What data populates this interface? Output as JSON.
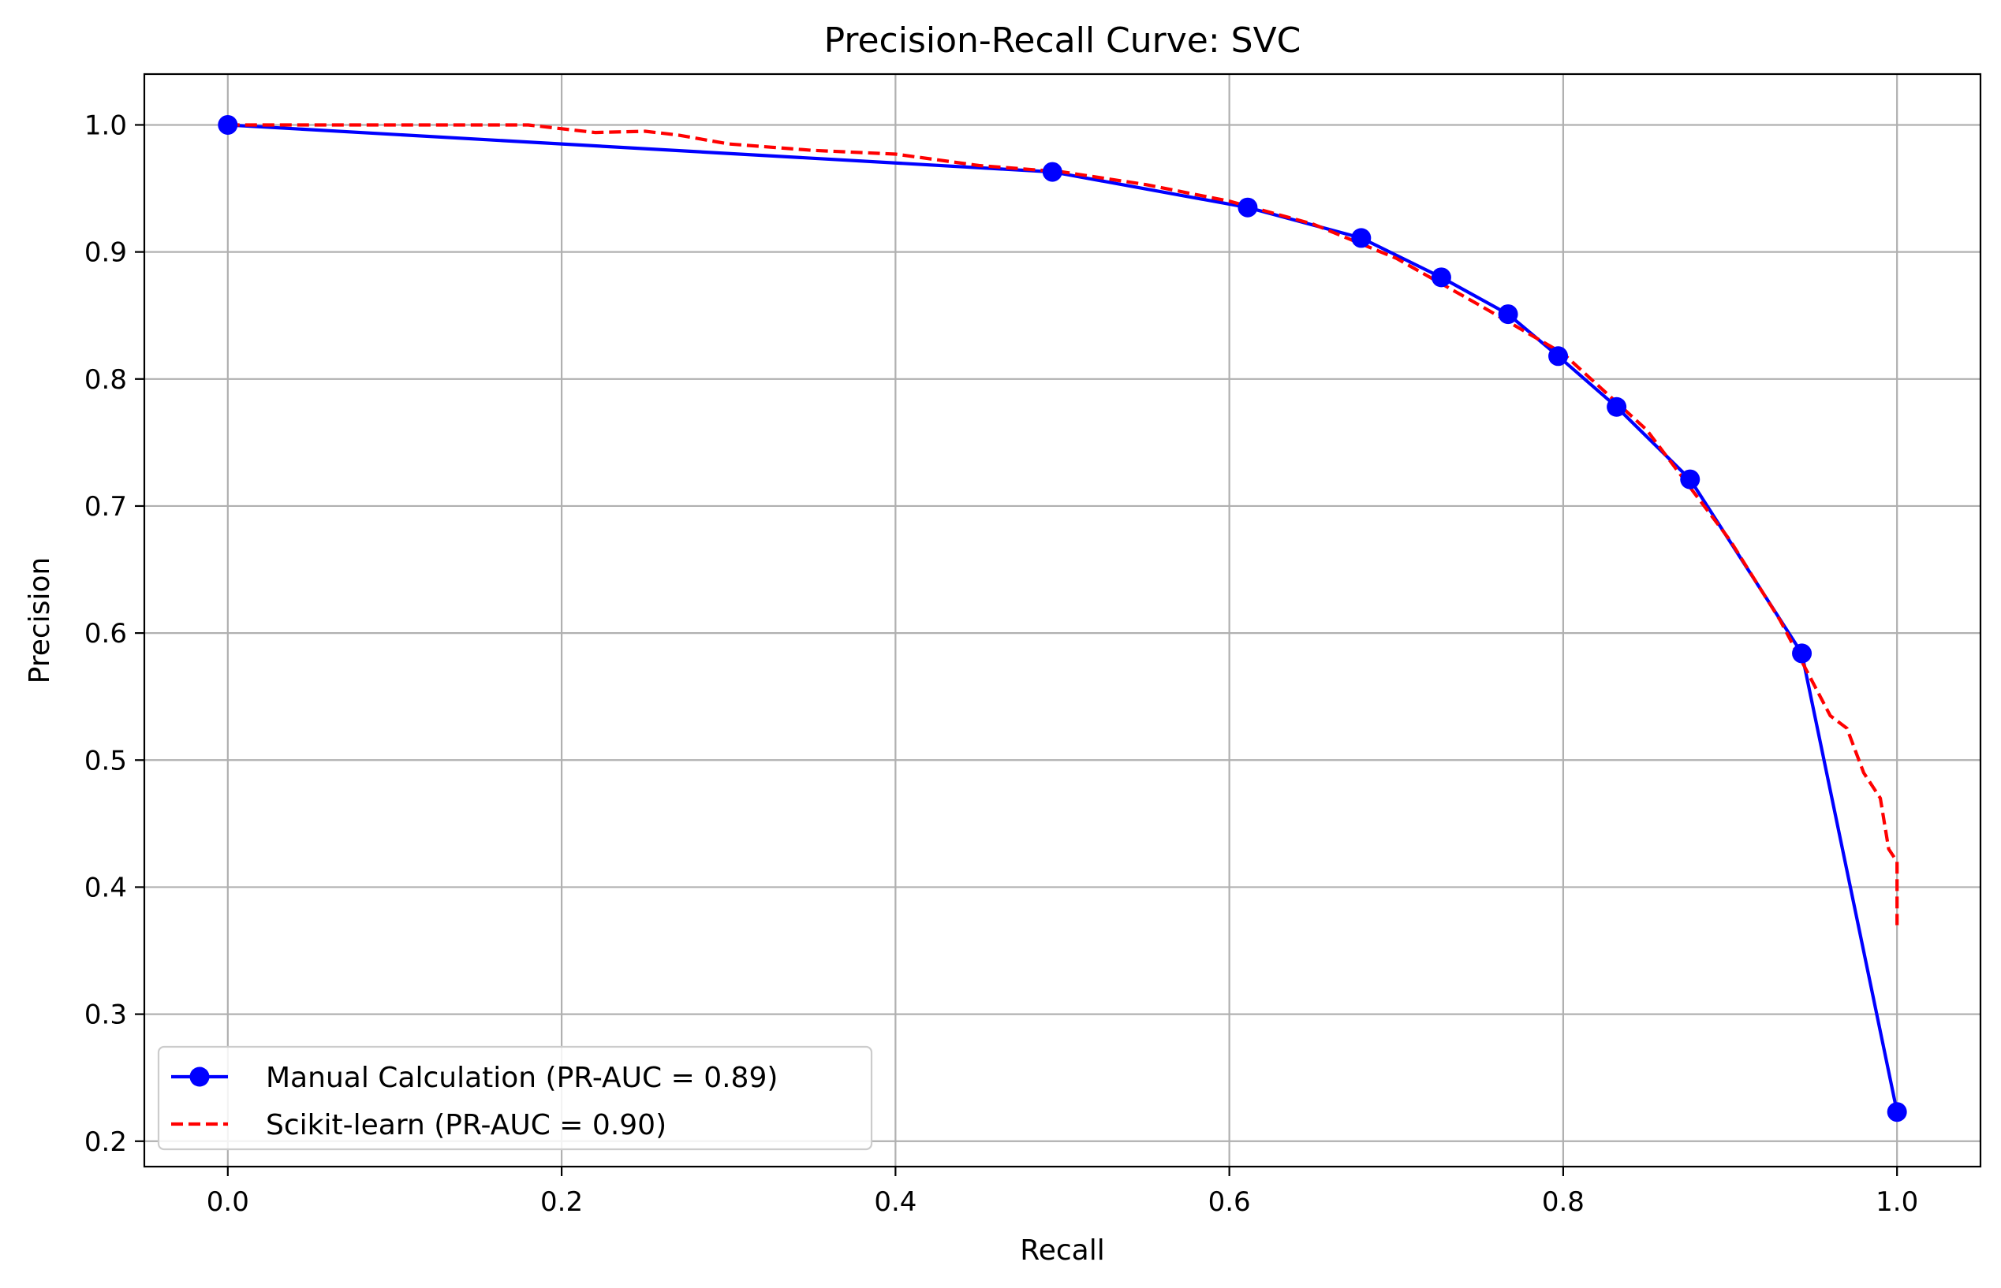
{
  "chart_data": {
    "type": "line",
    "title": "Precision-Recall Curve: SVC",
    "xlabel": "Recall",
    "ylabel": "Precision",
    "xlim": [
      -0.05,
      1.05
    ],
    "ylim": [
      0.18,
      1.04
    ],
    "xticks": [
      0.0,
      0.2,
      0.4,
      0.6,
      0.8,
      1.0
    ],
    "xtick_labels": [
      "0.0",
      "0.2",
      "0.4",
      "0.6",
      "0.8",
      "1.0"
    ],
    "yticks": [
      0.2,
      0.3,
      0.4,
      0.5,
      0.6,
      0.7,
      0.8,
      0.9,
      1.0
    ],
    "ytick_labels": [
      "0.2",
      "0.3",
      "0.4",
      "0.5",
      "0.6",
      "0.7",
      "0.8",
      "0.9",
      "1.0"
    ],
    "grid": true,
    "legend_position": "lower-left",
    "series": [
      {
        "name": "Manual Calculation (PR-AUC = 0.89)",
        "color": "#0000ff",
        "style": "solid",
        "marker": "circle",
        "x": [
          0.0,
          0.494,
          0.611,
          0.679,
          0.727,
          0.767,
          0.797,
          0.832,
          0.876,
          0.943,
          1.0
        ],
        "y": [
          1.0,
          0.963,
          0.935,
          0.911,
          0.88,
          0.851,
          0.818,
          0.778,
          0.721,
          0.584,
          0.223
        ]
      },
      {
        "name": "Scikit-learn (PR-AUC = 0.90)",
        "color": "#ff0000",
        "style": "dashed",
        "marker": "none",
        "x": [
          0.0,
          0.05,
          0.1,
          0.15,
          0.18,
          0.2,
          0.22,
          0.25,
          0.27,
          0.3,
          0.35,
          0.4,
          0.45,
          0.5,
          0.55,
          0.6,
          0.65,
          0.7,
          0.75,
          0.8,
          0.85,
          0.9,
          0.93,
          0.95,
          0.96,
          0.97,
          0.98,
          0.99,
          0.995,
          1.0,
          1.0
        ],
        "y": [
          1.0,
          1.0,
          1.0,
          1.0,
          1.0,
          0.997,
          0.994,
          0.995,
          0.992,
          0.985,
          0.98,
          0.977,
          0.968,
          0.963,
          0.953,
          0.94,
          0.922,
          0.895,
          0.858,
          0.82,
          0.76,
          0.673,
          0.61,
          0.56,
          0.535,
          0.525,
          0.49,
          0.47,
          0.43,
          0.42,
          0.37
        ]
      }
    ]
  }
}
